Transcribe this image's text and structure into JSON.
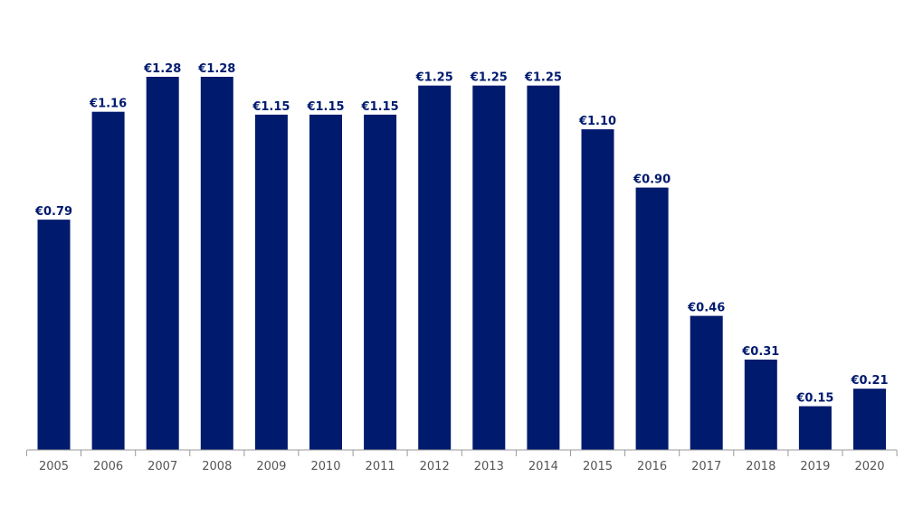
{
  "chart_data": {
    "type": "bar",
    "categories": [
      "2005",
      "2006",
      "2007",
      "2008",
      "2009",
      "2010",
      "2011",
      "2012",
      "2013",
      "2014",
      "2015",
      "2016",
      "2017",
      "2018",
      "2019",
      "2020"
    ],
    "values": [
      0.79,
      1.16,
      1.28,
      1.28,
      1.15,
      1.15,
      1.15,
      1.25,
      1.25,
      1.25,
      1.1,
      0.9,
      0.46,
      0.31,
      0.15,
      0.21
    ],
    "data_labels": [
      "€0.79",
      "€1.16",
      "€1.28",
      "€1.28",
      "€1.15",
      "€1.15",
      "€1.15",
      "€1.25",
      "€1.25",
      "€1.25",
      "€1.10",
      "€0.90",
      "€0.46",
      "€0.31",
      "€0.15",
      "€0.21"
    ],
    "title": "",
    "xlabel": "",
    "ylabel": "",
    "ylim": [
      0,
      1.28
    ],
    "grid": false,
    "legend": "none",
    "y_axis_visible": false,
    "colors": {
      "bar": "#001a6e",
      "label": "#001a6e",
      "axis": "#999999",
      "tick_text": "#555555"
    }
  }
}
